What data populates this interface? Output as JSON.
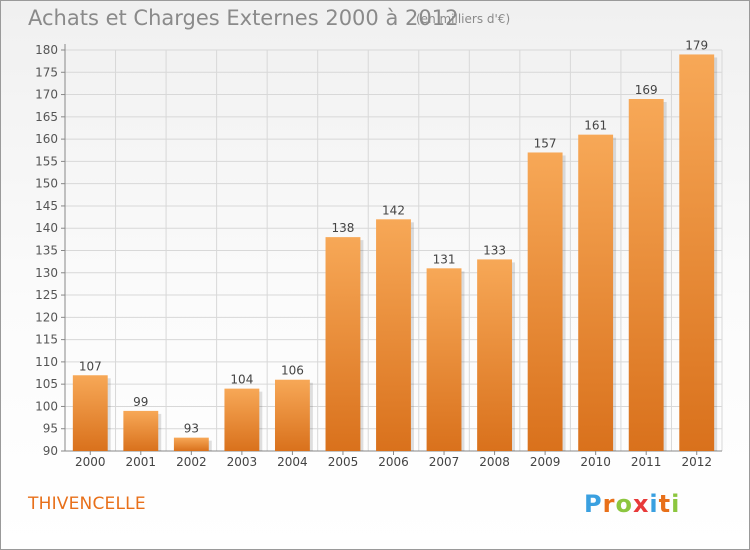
{
  "header": {
    "title": "Achats et Charges Externes 2000 à 2012",
    "subtitle": "(en milliers d'€)"
  },
  "footer": {
    "location": "THIVENCELLE",
    "logo_letters": [
      "P",
      "r",
      "o",
      "x",
      "i",
      "t",
      "i"
    ],
    "logo_colors": [
      "#3aa0e0",
      "#e8701a",
      "#8cc63f",
      "#e83a3a",
      "#3aa0e0",
      "#e8701a",
      "#8cc63f"
    ]
  },
  "chart_data": {
    "type": "bar",
    "categories": [
      "2000",
      "2001",
      "2002",
      "2003",
      "2004",
      "2005",
      "2006",
      "2007",
      "2008",
      "2009",
      "2010",
      "2011",
      "2012"
    ],
    "values": [
      107,
      99,
      93,
      104,
      106,
      138,
      142,
      131,
      133,
      157,
      161,
      169,
      179
    ],
    "ylim": [
      90,
      180
    ],
    "yticks": [
      90,
      95,
      100,
      105,
      110,
      115,
      120,
      125,
      130,
      135,
      140,
      145,
      150,
      155,
      160,
      165,
      170,
      175,
      180
    ],
    "grid": true,
    "bar_color_top": "#f7a857",
    "bar_color_bottom": "#d9711c"
  }
}
